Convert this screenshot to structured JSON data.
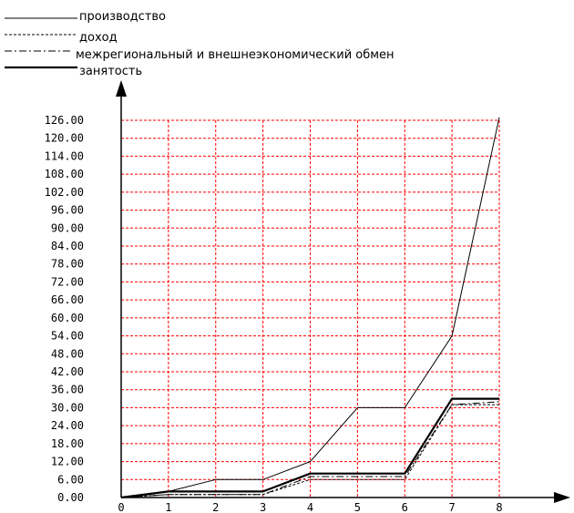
{
  "chart_data": {
    "type": "line",
    "title": "",
    "xlabel": "",
    "ylabel": "",
    "x": [
      0,
      1,
      2,
      3,
      4,
      5,
      6,
      7,
      8
    ],
    "xlim": [
      0,
      8
    ],
    "ylim": [
      0,
      126
    ],
    "y_ticks": [
      "0.00",
      "6.00",
      "12.00",
      "18.00",
      "24.00",
      "30.00",
      "36.00",
      "42.00",
      "48.00",
      "54.00",
      "60.00",
      "66.00",
      "72.00",
      "78.00",
      "84.00",
      "90.00",
      "96.00",
      "102.00",
      "108.00",
      "114.00",
      "120.00",
      "126.00"
    ],
    "x_ticks": [
      "0",
      "1",
      "2",
      "3",
      "4",
      "5",
      "6",
      "7",
      "8"
    ],
    "grid": true,
    "grid_color": "#ff0000",
    "legend_position": "top-left",
    "series": [
      {
        "name": "производство",
        "style": "solid-thin",
        "color": "#000000",
        "values": [
          0,
          2,
          6,
          6,
          12,
          30,
          30,
          54,
          127
        ]
      },
      {
        "name": "доход",
        "style": "dotted",
        "color": "#000000",
        "values": [
          0,
          1,
          1,
          1,
          6,
          6,
          6,
          31,
          31
        ]
      },
      {
        "name": "межрегиональный и внешнеэкономический обмен",
        "style": "dash-dot",
        "color": "#000000",
        "values": [
          0,
          1,
          1,
          1,
          7,
          7,
          7,
          31,
          32
        ]
      },
      {
        "name": "занятость",
        "style": "solid-thick",
        "color": "#000000",
        "values": [
          0,
          2,
          2,
          2,
          8,
          8,
          8,
          33,
          33
        ]
      }
    ]
  }
}
